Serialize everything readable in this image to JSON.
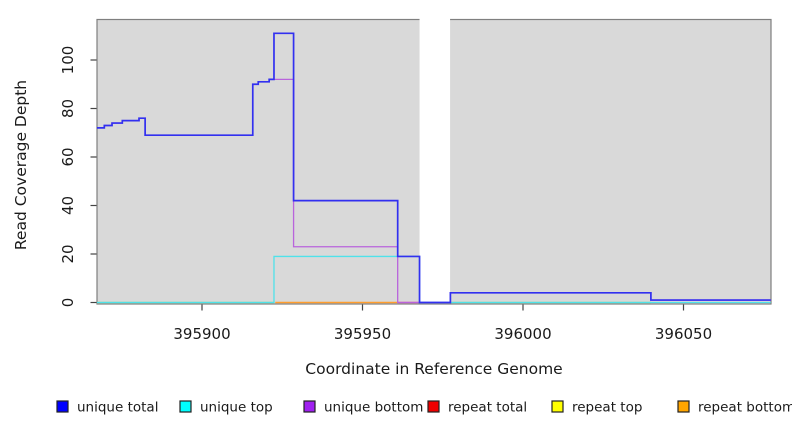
{
  "figure": {
    "background": "#ffffff",
    "panel_background": "#d9d9d9",
    "panel_border": "#7f7f7f"
  },
  "chart_data": {
    "type": "line",
    "subtype": "step",
    "title": "",
    "xlabel": "Coordinate in Reference Genome",
    "ylabel": "Read Coverage Depth",
    "xlim": [
      395867,
      396077
    ],
    "ylim": [
      0,
      117
    ],
    "grid": "off",
    "legend_position": "bottom",
    "x_ticks": [
      "395900",
      "395950",
      "396000",
      "396050"
    ],
    "y_ticks": [
      "0",
      "20",
      "40",
      "60",
      "80",
      "100"
    ],
    "panel_bg": "#d9d9d9",
    "masked_region": {
      "x_start": 395967.7,
      "x_end": 395977.2,
      "color": "#ffffff"
    },
    "draw_order": [
      "unique bottom",
      "unique top",
      "unique total"
    ],
    "series": [
      {
        "name": "unique total",
        "line_color": "#3230f0",
        "line_width": 1.7,
        "steps": [
          [
            395867.3,
            72
          ],
          [
            395869.6,
            73
          ],
          [
            395872,
            74
          ],
          [
            395875.2,
            75
          ],
          [
            395880.4,
            76
          ],
          [
            395882.3,
            69
          ],
          [
            395915.8,
            90
          ],
          [
            395917.5,
            91
          ],
          [
            395920.9,
            92
          ],
          [
            395922.4,
            111
          ],
          [
            395928.5,
            42
          ],
          [
            395960.9,
            19
          ],
          [
            395967.7,
            0
          ],
          [
            395977.3,
            4
          ],
          [
            396039.7,
            1
          ],
          [
            396077,
            1
          ]
        ]
      },
      {
        "name": "unique top",
        "line_color": "#4fe2ea",
        "line_width": 1.3,
        "steps": [
          [
            395867.3,
            0
          ],
          [
            395922.4,
            19
          ],
          [
            395967.7,
            0
          ],
          [
            396077,
            0
          ]
        ]
      },
      {
        "name": "unique bottom",
        "line_color": "#b964dc",
        "line_width": 1.3,
        "steps": [
          [
            395867.3,
            72
          ],
          [
            395869.6,
            73
          ],
          [
            395872,
            74
          ],
          [
            395875.2,
            75
          ],
          [
            395880.4,
            76
          ],
          [
            395882.3,
            69
          ],
          [
            395915.8,
            90
          ],
          [
            395917.5,
            91
          ],
          [
            395920.9,
            92
          ],
          [
            395928.5,
            23
          ],
          [
            395960.9,
            0
          ],
          [
            395977.3,
            4
          ],
          [
            396039.7,
            1
          ],
          [
            396077,
            1
          ]
        ]
      },
      {
        "name": "repeat total",
        "line_color": "#ee0000",
        "line_width": 1.3,
        "steps": [
          [
            395867.3,
            0
          ],
          [
            396077,
            0
          ]
        ]
      },
      {
        "name": "repeat top",
        "line_color": "#ffff00",
        "line_width": 1.3,
        "steps": [
          [
            395867.3,
            0
          ],
          [
            396077,
            0
          ]
        ]
      },
      {
        "name": "repeat bottom",
        "line_color": "#ffa500",
        "line_width": 1.3,
        "steps": [
          [
            395867.3,
            0
          ],
          [
            396077,
            0
          ]
        ]
      }
    ],
    "baseline_segments": [
      {
        "x_start": 395867.3,
        "x_end": 395922.3,
        "color": "#8fd98f"
      },
      {
        "x_start": 395922.8,
        "x_end": 395960.9,
        "color": "#ff9e2e"
      },
      {
        "x_start": 395960.9,
        "x_end": 395967.7,
        "color": "#e0559b"
      },
      {
        "x_start": 395977.4,
        "x_end": 396039.7,
        "color": "#8fd98f"
      }
    ]
  },
  "legend": {
    "items": [
      {
        "label": "unique total",
        "color": "#0000ff"
      },
      {
        "label": "unique top",
        "color": "#00ffff"
      },
      {
        "label": "unique bottom",
        "color": "#a020f0"
      },
      {
        "label": "repeat total",
        "color": "#ee0000"
      },
      {
        "label": "repeat top",
        "color": "#ffff00"
      },
      {
        "label": "repeat bottom",
        "color": "#ffa500"
      }
    ]
  }
}
